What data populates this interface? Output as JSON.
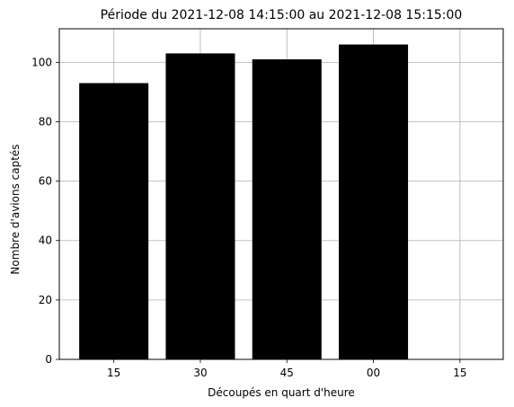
{
  "chart_data": {
    "type": "bar",
    "title": "Période du 2021-12-08 14:15:00 au 2021-12-08 15:15:00",
    "xlabel": "Découpés en quart d'heure",
    "ylabel": "Nombre d'avions captés",
    "categories": [
      "15",
      "30",
      "45",
      "00",
      "15"
    ],
    "values": [
      93,
      103,
      101,
      106,
      null
    ],
    "yticks": [
      0,
      20,
      40,
      60,
      80,
      100
    ],
    "ylim": [
      0,
      111.3
    ],
    "grid": true,
    "bar_color": "#000000",
    "grid_color": "#b0b0b0"
  }
}
